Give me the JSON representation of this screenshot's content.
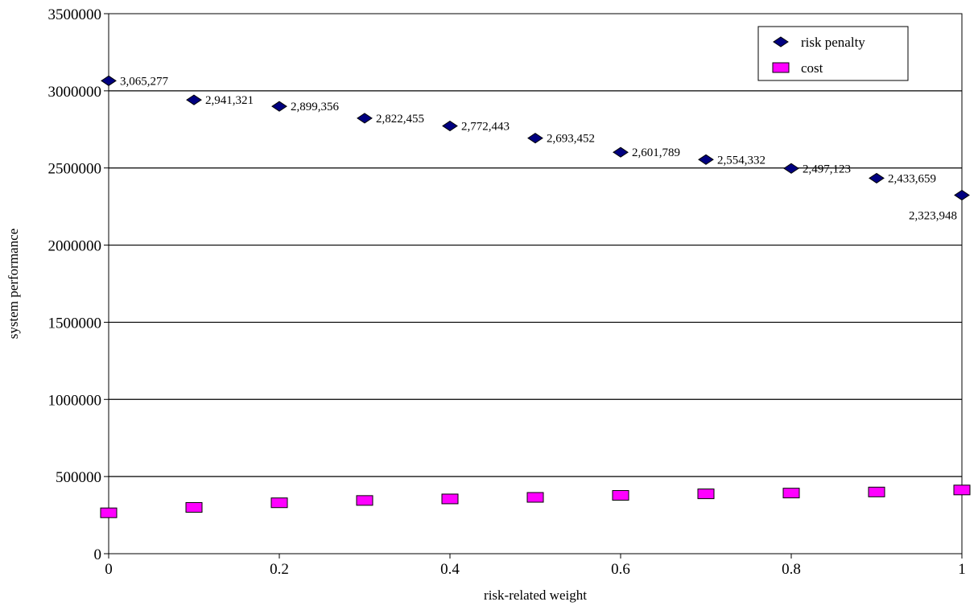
{
  "chart_data": {
    "type": "scatter",
    "title": "",
    "xlabel": "risk-related weight",
    "ylabel": "system  performance",
    "xlim": [
      0,
      1
    ],
    "ylim": [
      0,
      3500000
    ],
    "x_ticks": [
      0,
      0.2,
      0.4,
      0.6,
      0.8,
      1
    ],
    "x_tick_labels": [
      "0",
      "0.2",
      "0.4",
      "0.6",
      "0.8",
      "1"
    ],
    "y_ticks": [
      0,
      500000,
      1000000,
      1500000,
      2000000,
      2500000,
      3000000,
      3500000
    ],
    "y_tick_labels": [
      "0",
      "500000",
      "1000000",
      "1500000",
      "2000000",
      "2500000",
      "3000000",
      "3500000"
    ],
    "grid": "horizontal",
    "legend_position": "top-right",
    "x": [
      0,
      0.1,
      0.2,
      0.3,
      0.4,
      0.5,
      0.6,
      0.7,
      0.8,
      0.9,
      1.0
    ],
    "series": [
      {
        "name": "risk penalty",
        "marker": "diamond",
        "color": "#000080",
        "values": [
          3065277,
          2941321,
          2899356,
          2822455,
          2772443,
          2693452,
          2601789,
          2554332,
          2497123,
          2433659,
          2323948
        ],
        "labels": [
          "3,065,277",
          "2,941,321",
          "2,899,356",
          "2,822,455",
          "2,772,443",
          "2,693,452",
          "2,601,789",
          "2,554,332",
          "2,497,123",
          "2,433,659",
          "2,323,948"
        ]
      },
      {
        "name": "cost",
        "marker": "square",
        "color": "#ff00ff",
        "values": [
          265000,
          300000,
          330000,
          345000,
          355000,
          365000,
          378000,
          388000,
          393000,
          400000,
          413000
        ]
      }
    ]
  }
}
